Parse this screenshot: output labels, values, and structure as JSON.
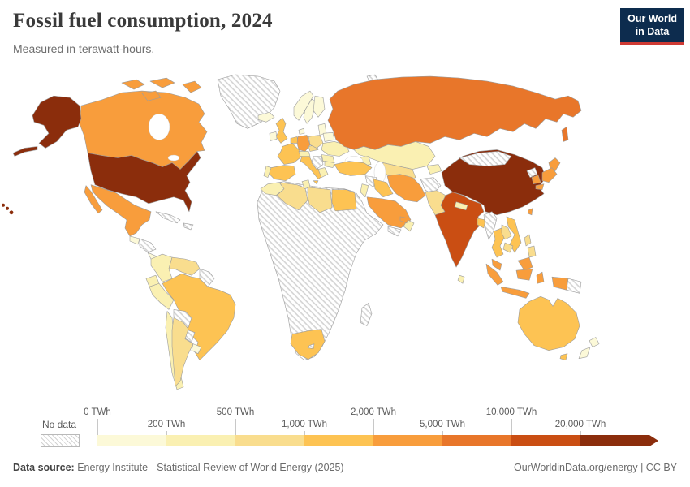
{
  "header": {
    "title": "Fossil fuel consumption, 2024",
    "subtitle": "Measured in terawatt-hours.",
    "logo_line1": "Our World",
    "logo_line2": "in Data",
    "logo_bg": "#0d2c4e",
    "logo_accent": "#cf3a34"
  },
  "footer": {
    "source_label": "Data source:",
    "source_text": " Energy Institute - Statistical Review of World Energy (2025)",
    "link": "OurWorldinData.org/energy",
    "separator": " | ",
    "license": "CC BY"
  },
  "chart_data": {
    "type": "heatmap",
    "subtype": "choropleth-world-map",
    "title": "Fossil fuel consumption, 2024",
    "unit": "TWh",
    "legend": {
      "no_data_label": "No data",
      "tick_labels": [
        "0 TWh",
        "200 TWh",
        "500 TWh",
        "1,000 TWh",
        "2,000 TWh",
        "5,000 TWh",
        "10,000 TWh",
        "20,000 TWh"
      ],
      "bins": [
        "0-200",
        "200-500",
        "500-1,000",
        "1,000-2,000",
        "2,000-5,000",
        "5,000-10,000",
        "10,000-20,000",
        "20,000+"
      ],
      "colors": [
        "#fcf9d8",
        "#faf0b2",
        "#f9dd8e",
        "#fdc353",
        "#f89d3c",
        "#e8762a",
        "#ca4e13",
        "#8b2d0c"
      ],
      "no_data_pattern": "diagonal-hatch",
      "position": "bottom"
    },
    "countries": {
      "greenland": {
        "name": "Greenland",
        "bin": "no-data"
      },
      "canada": {
        "name": "Canada",
        "bin": 4
      },
      "usa": {
        "name": "United States",
        "bin": 7
      },
      "mexico": {
        "name": "Mexico",
        "bin": 4
      },
      "guatemala": {
        "name": "Guatemala",
        "bin": 0
      },
      "honduras-nicaragua": {
        "name": "Honduras & Nicaragua",
        "bin": "no-data"
      },
      "costa-rica-panama": {
        "name": "Costa Rica & Panama",
        "bin": 0
      },
      "cuba": {
        "name": "Cuba",
        "bin": "no-data"
      },
      "hispaniola": {
        "name": "Hispaniola",
        "bin": "no-data"
      },
      "colombia": {
        "name": "Colombia",
        "bin": 1
      },
      "venezuela": {
        "name": "Venezuela",
        "bin": 2
      },
      "guyanas": {
        "name": "Guyanas",
        "bin": "no-data"
      },
      "ecuador": {
        "name": "Ecuador",
        "bin": 1
      },
      "peru": {
        "name": "Peru",
        "bin": 1
      },
      "brazil": {
        "name": "Brazil",
        "bin": 3
      },
      "bolivia": {
        "name": "Bolivia",
        "bin": "no-data"
      },
      "paraguay": {
        "name": "Paraguay",
        "bin": "no-data"
      },
      "chile": {
        "name": "Chile",
        "bin": 1
      },
      "argentina": {
        "name": "Argentina",
        "bin": 2
      },
      "uruguay": {
        "name": "Uruguay",
        "bin": 0
      },
      "iceland": {
        "name": "Iceland",
        "bin": 0
      },
      "norway": {
        "name": "Norway",
        "bin": 0
      },
      "sweden": {
        "name": "Sweden",
        "bin": 0
      },
      "finland": {
        "name": "Finland",
        "bin": 0
      },
      "denmark": {
        "name": "Denmark",
        "bin": 0
      },
      "united-kingdom": {
        "name": "United Kingdom",
        "bin": 3
      },
      "ireland": {
        "name": "Ireland",
        "bin": 0
      },
      "benelux": {
        "name": "Netherlands & Belgium",
        "bin": 3
      },
      "germany": {
        "name": "Germany",
        "bin": 4
      },
      "france": {
        "name": "France",
        "bin": 3
      },
      "spain": {
        "name": "Spain",
        "bin": 3
      },
      "portugal": {
        "name": "Portugal",
        "bin": 1
      },
      "italy": {
        "name": "Italy",
        "bin": 3
      },
      "alpine": {
        "name": "Switzerland & Austria",
        "bin": 1
      },
      "czechia": {
        "name": "Czechia",
        "bin": 2
      },
      "poland": {
        "name": "Poland",
        "bin": 2
      },
      "baltics": {
        "name": "Baltic states",
        "bin": 0
      },
      "belarus": {
        "name": "Belarus",
        "bin": 0
      },
      "ukraine": {
        "name": "Ukraine",
        "bin": 1
      },
      "romania": {
        "name": "Romania",
        "bin": 1
      },
      "balkans": {
        "name": "Western Balkans",
        "bin": "no-data"
      },
      "greece": {
        "name": "Greece",
        "bin": 1
      },
      "bulgaria": {
        "name": "Bulgaria",
        "bin": 1
      },
      "russia": {
        "name": "Russia",
        "bin": 5
      },
      "kazakhstan": {
        "name": "Kazakhstan",
        "bin": 1
      },
      "uzbekistan-turkmenistan": {
        "name": "Uzbekistan & Turkmenistan",
        "bin": 2
      },
      "kyrgyzstan-tajikistan": {
        "name": "Kyrgyzstan & Tajikistan",
        "bin": 1
      },
      "caucasus": {
        "name": "Caucasus",
        "bin": 1
      },
      "turkey": {
        "name": "Turkey",
        "bin": 3
      },
      "syria": {
        "name": "Syria",
        "bin": "no-data"
      },
      "israel-jordan": {
        "name": "Israel & Jordan",
        "bin": 1
      },
      "iraq": {
        "name": "Iraq",
        "bin": 3
      },
      "saudi-arabia": {
        "name": "Saudi Arabia",
        "bin": 4
      },
      "yemen": {
        "name": "Yemen",
        "bin": "no-data"
      },
      "oman": {
        "name": "Oman",
        "bin": 1
      },
      "uae-qatar": {
        "name": "United Arab Emirates & Qatar",
        "bin": 4
      },
      "iran": {
        "name": "Iran",
        "bin": 4
      },
      "afghanistan": {
        "name": "Afghanistan",
        "bin": "no-data"
      },
      "pakistan": {
        "name": "Pakistan",
        "bin": 2
      },
      "india": {
        "name": "India",
        "bin": 6
      },
      "nepal": {
        "name": "Nepal",
        "bin": 1
      },
      "bangladesh": {
        "name": "Bangladesh",
        "bin": 3
      },
      "sri-lanka": {
        "name": "Sri Lanka",
        "bin": 1
      },
      "china": {
        "name": "China",
        "bin": 7
      },
      "mongolia": {
        "name": "Mongolia",
        "bin": "no-data"
      },
      "north-korea": {
        "name": "North Korea",
        "bin": "no-data"
      },
      "south-korea": {
        "name": "South Korea",
        "bin": 4
      },
      "japan": {
        "name": "Japan",
        "bin": 4
      },
      "taiwan": {
        "name": "Taiwan",
        "bin": 4
      },
      "myanmar": {
        "name": "Myanmar",
        "bin": "no-data"
      },
      "thailand": {
        "name": "Thailand",
        "bin": 3
      },
      "laos": {
        "name": "Laos",
        "bin": 2
      },
      "vietnam": {
        "name": "Vietnam",
        "bin": 3
      },
      "cambodia": {
        "name": "Cambodia",
        "bin": 2
      },
      "malaysia": {
        "name": "Malaysia",
        "bin": 4
      },
      "indonesia": {
        "name": "Indonesia",
        "bin": 4
      },
      "papua-new-guinea": {
        "name": "Papua New Guinea",
        "bin": "no-data"
      },
      "philippines": {
        "name": "Philippines",
        "bin": 2
      },
      "australia": {
        "name": "Australia",
        "bin": 3
      },
      "new-zealand": {
        "name": "New Zealand",
        "bin": 0
      },
      "africa-region": {
        "name": "Sub-Saharan Africa",
        "bin": "no-data"
      },
      "morocco": {
        "name": "Morocco",
        "bin": 1
      },
      "algeria": {
        "name": "Algeria",
        "bin": 2
      },
      "tunisia": {
        "name": "Tunisia",
        "bin": 1
      },
      "libya": {
        "name": "Libya",
        "bin": 2
      },
      "egypt": {
        "name": "Egypt",
        "bin": 3
      },
      "south-africa": {
        "name": "South Africa",
        "bin": 3
      },
      "lesotho": {
        "name": "Lesotho",
        "bin": "no-data"
      },
      "madagascar": {
        "name": "Madagascar",
        "bin": "no-data"
      },
      "svalbard": {
        "name": "Svalbard",
        "bin": "no-data"
      }
    }
  }
}
